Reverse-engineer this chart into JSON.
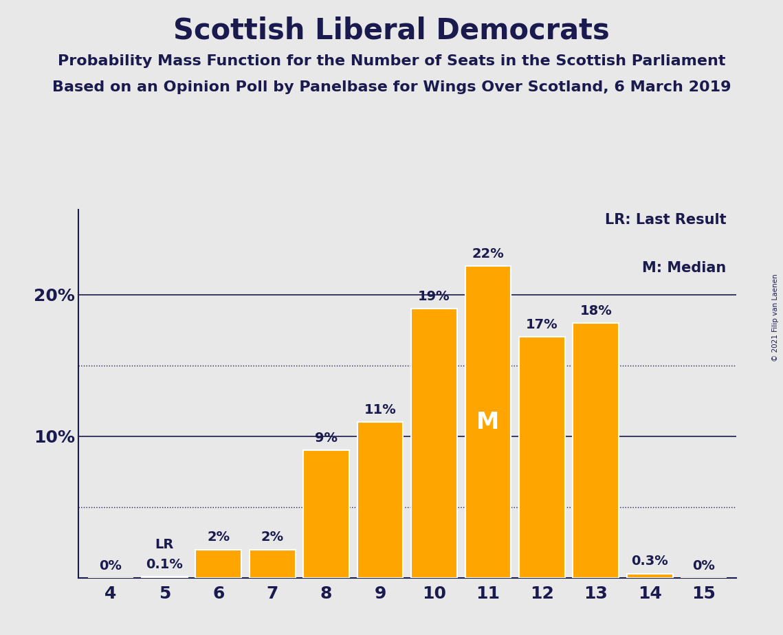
{
  "title": "Scottish Liberal Democrats",
  "subtitle1": "Probability Mass Function for the Number of Seats in the Scottish Parliament",
  "subtitle2": "Based on an Opinion Poll by Panelbase for Wings Over Scotland, 6 March 2019",
  "copyright": "© 2021 Filip van Laenen",
  "categories": [
    4,
    5,
    6,
    7,
    8,
    9,
    10,
    11,
    12,
    13,
    14,
    15
  ],
  "values": [
    0.0,
    0.1,
    2.0,
    2.0,
    9.0,
    11.0,
    19.0,
    22.0,
    17.0,
    18.0,
    0.3,
    0.0
  ],
  "labels": [
    "0%",
    "0.1%",
    "2%",
    "2%",
    "9%",
    "11%",
    "19%",
    "22%",
    "17%",
    "18%",
    "0.3%",
    "0%"
  ],
  "bar_color": "#FFA500",
  "background_color": "#E8E8E8",
  "text_color": "#1a1a4e",
  "median_seat": 11,
  "last_result_seat": 5,
  "legend_lr": "LR: Last Result",
  "legend_m": "M: Median",
  "median_label": "M",
  "lr_label": "LR",
  "dotted_lines": [
    5.0,
    15.0
  ],
  "solid_lines": [
    10.0,
    20.0
  ],
  "ylim": [
    0,
    26
  ],
  "title_fontsize": 30,
  "subtitle_fontsize": 16,
  "label_fontsize": 14,
  "tick_fontsize": 18,
  "legend_fontsize": 15,
  "median_fontsize": 24
}
